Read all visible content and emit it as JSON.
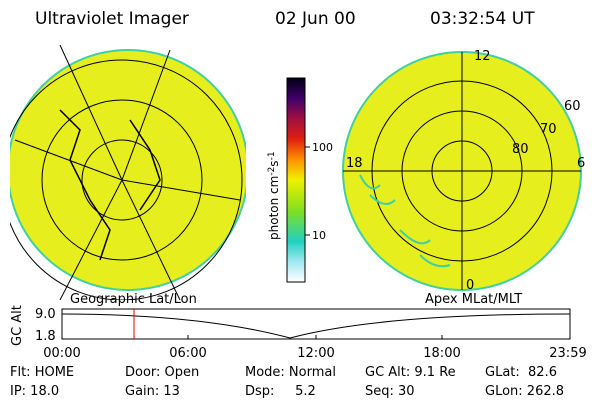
{
  "header": {
    "title": "Ultraviolet Imager",
    "date": "02 Jun 00",
    "time": "03:32:54 UT"
  },
  "colorbar": {
    "label": [
      "photon cm",
      "-2",
      "s",
      "-1"
    ],
    "ticks": [
      "100",
      "10"
    ]
  },
  "polar": {
    "labels": [
      "12",
      "60",
      "70",
      "80",
      "18",
      "6",
      "0"
    ]
  },
  "panels": {
    "left": "Geographic Lat/Lon",
    "right": "Apex MLat/MLT"
  },
  "timeline": {
    "ylabel": "GC Alt",
    "yticks": [
      "9.0",
      "1.8"
    ],
    "xticks": [
      "00:00",
      "06:00",
      "12:00",
      "18:00",
      "23:59"
    ]
  },
  "footer": {
    "rows": [
      [
        "Flt: HOME",
        "Door: Open",
        "Mode: Normal",
        "GC Alt: 9.1 Re",
        "GLat:  82.6"
      ],
      [
        "IP: 18.0",
        "Gain: 13",
        "Dsp:     5.2",
        "Seq: 30",
        "GLon: 262.8"
      ]
    ]
  }
}
